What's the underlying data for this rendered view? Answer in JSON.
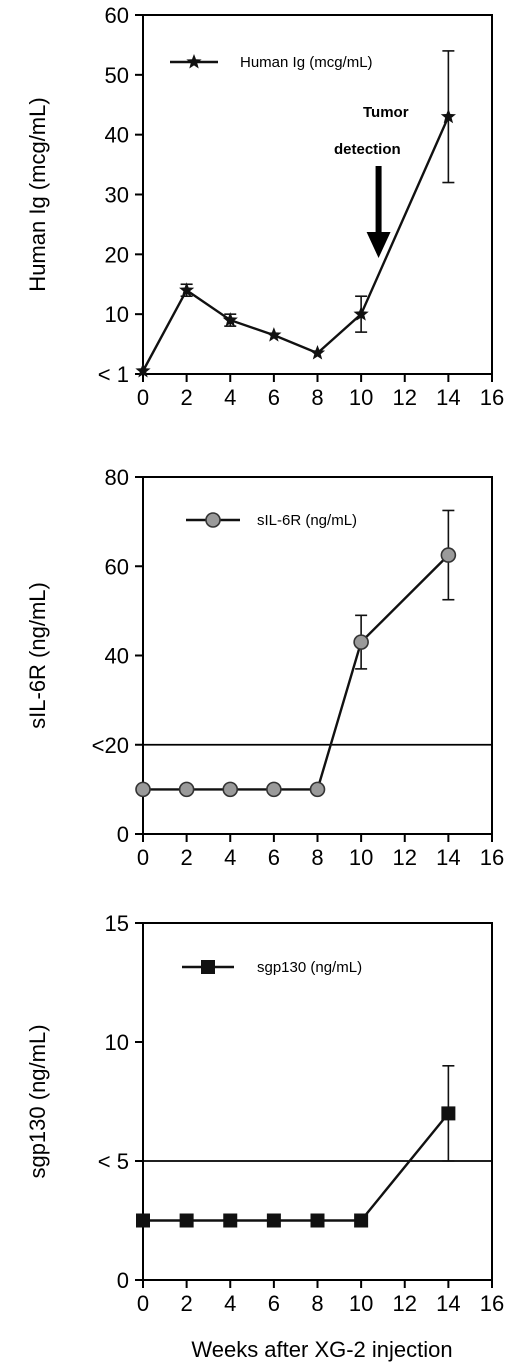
{
  "figure": {
    "xlabel": "Weeks after XG-2 injection",
    "annotation": {
      "line1": "Tumor",
      "line2": "detection",
      "x": 10.8
    }
  },
  "chart_data": [
    {
      "type": "line",
      "ylabel": "Human Ig (mcg/mL)",
      "xlim": [
        0,
        16
      ],
      "ylim": [
        0,
        60
      ],
      "xticks": [
        0,
        2,
        4,
        6,
        8,
        10,
        12,
        14,
        16
      ],
      "yticks": [
        {
          "value": 0,
          "label": "< 1"
        },
        {
          "value": 10,
          "label": "10"
        },
        {
          "value": 20,
          "label": "20"
        },
        {
          "value": 30,
          "label": "30"
        },
        {
          "value": 40,
          "label": "40"
        },
        {
          "value": 50,
          "label": "50"
        },
        {
          "value": 60,
          "label": "60"
        }
      ],
      "marker": "star",
      "legend_location": "top-left",
      "series": [
        {
          "name": "Human Ig (mcg/mL)",
          "x": [
            0,
            2,
            4,
            6,
            8,
            10,
            14
          ],
          "y": [
            0.5,
            14,
            9,
            6.5,
            3.5,
            10,
            43
          ],
          "error": [
            0,
            1,
            1,
            0,
            0,
            3,
            11
          ]
        }
      ],
      "reference_line": null
    },
    {
      "type": "line",
      "ylabel": "sIL-6R (ng/mL)",
      "xlim": [
        0,
        16
      ],
      "ylim": [
        0,
        80
      ],
      "xticks": [
        0,
        2,
        4,
        6,
        8,
        10,
        12,
        14,
        16
      ],
      "yticks": [
        {
          "value": 0,
          "label": "0"
        },
        {
          "value": 20,
          "label": "<20"
        },
        {
          "value": 40,
          "label": "40"
        },
        {
          "value": 60,
          "label": "60"
        },
        {
          "value": 80,
          "label": "80"
        }
      ],
      "marker": "circle",
      "legend_location": "top-center",
      "series": [
        {
          "name": "sIL-6R (ng/mL)",
          "x": [
            0,
            2,
            4,
            6,
            8,
            10,
            14
          ],
          "y": [
            10,
            10,
            10,
            10,
            10,
            43,
            62.5
          ],
          "error": [
            0,
            0,
            0,
            0,
            0,
            6,
            10
          ]
        }
      ],
      "reference_line": 20
    },
    {
      "type": "line",
      "ylabel": "sgp130 (ng/mL)",
      "xlim": [
        0,
        16
      ],
      "ylim": [
        0,
        15
      ],
      "xticks": [
        0,
        2,
        4,
        6,
        8,
        10,
        12,
        14,
        16
      ],
      "yticks": [
        {
          "value": 0,
          "label": "0"
        },
        {
          "value": 5,
          "label": "< 5"
        },
        {
          "value": 10,
          "label": "10"
        },
        {
          "value": 15,
          "label": "15"
        }
      ],
      "marker": "square",
      "legend_location": "top-center",
      "series": [
        {
          "name": "sgp130 (ng/mL)",
          "x": [
            0,
            2,
            4,
            6,
            8,
            10,
            14
          ],
          "y": [
            2.5,
            2.5,
            2.5,
            2.5,
            2.5,
            2.5,
            7
          ],
          "error": [
            0,
            0,
            0,
            0,
            0,
            0,
            2
          ]
        }
      ],
      "reference_line": 5
    }
  ]
}
